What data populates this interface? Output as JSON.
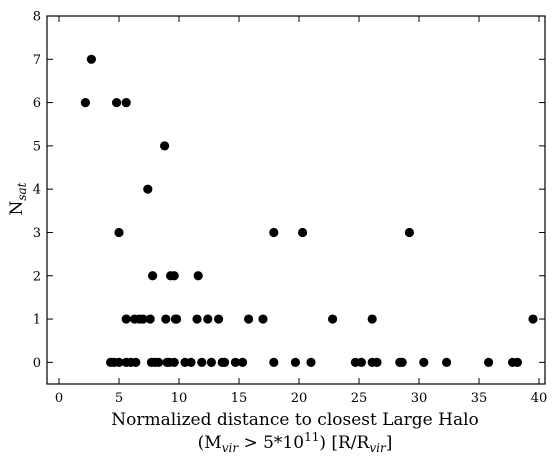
{
  "chart_data": {
    "type": "scatter",
    "xlabel_line1": "Normalized distance to closest Large Halo",
    "xlabel_line2": {
      "pre": "(M",
      "sub1": "vir",
      "mid": " > 5*10",
      "sup": "11",
      "post": ") [R/R",
      "sub2": "vir",
      "end": "]"
    },
    "ylabel": {
      "base": "N",
      "sub": "sat"
    },
    "xlim": [
      -1,
      40.5
    ],
    "ylim": [
      -0.5,
      8
    ],
    "xticks": [
      0,
      5,
      10,
      15,
      20,
      25,
      30,
      35,
      40
    ],
    "yticks": [
      0,
      1,
      2,
      3,
      4,
      5,
      6,
      7,
      8
    ],
    "grid": false,
    "marker_color": "#000000",
    "points": [
      [
        2.2,
        6
      ],
      [
        2.7,
        7
      ],
      [
        4.8,
        6
      ],
      [
        5.6,
        6
      ],
      [
        8.8,
        5
      ],
      [
        7.4,
        4
      ],
      [
        5.0,
        3
      ],
      [
        17.9,
        3
      ],
      [
        20.3,
        3
      ],
      [
        29.2,
        3
      ],
      [
        7.8,
        2
      ],
      [
        9.3,
        2
      ],
      [
        9.6,
        2
      ],
      [
        11.6,
        2
      ],
      [
        5.6,
        1
      ],
      [
        6.3,
        1
      ],
      [
        6.7,
        1
      ],
      [
        7.0,
        1
      ],
      [
        7.6,
        1
      ],
      [
        8.9,
        1
      ],
      [
        9.7,
        1
      ],
      [
        9.8,
        1
      ],
      [
        11.5,
        1
      ],
      [
        12.4,
        1
      ],
      [
        13.3,
        1
      ],
      [
        15.8,
        1
      ],
      [
        17.0,
        1
      ],
      [
        22.8,
        1
      ],
      [
        26.1,
        1
      ],
      [
        39.5,
        1
      ],
      [
        4.3,
        0
      ],
      [
        4.6,
        0
      ],
      [
        5.0,
        0
      ],
      [
        5.6,
        0
      ],
      [
        6.0,
        0
      ],
      [
        6.4,
        0
      ],
      [
        7.7,
        0
      ],
      [
        8.0,
        0
      ],
      [
        8.3,
        0
      ],
      [
        9.0,
        0
      ],
      [
        9.2,
        0
      ],
      [
        9.6,
        0
      ],
      [
        10.5,
        0
      ],
      [
        11.0,
        0
      ],
      [
        11.9,
        0
      ],
      [
        12.7,
        0
      ],
      [
        13.6,
        0
      ],
      [
        13.8,
        0
      ],
      [
        14.7,
        0
      ],
      [
        15.3,
        0
      ],
      [
        17.9,
        0
      ],
      [
        19.7,
        0
      ],
      [
        21.0,
        0
      ],
      [
        24.7,
        0
      ],
      [
        25.2,
        0
      ],
      [
        26.1,
        0
      ],
      [
        26.5,
        0
      ],
      [
        28.4,
        0
      ],
      [
        28.6,
        0
      ],
      [
        30.4,
        0
      ],
      [
        32.3,
        0
      ],
      [
        35.8,
        0
      ],
      [
        37.8,
        0
      ],
      [
        38.2,
        0
      ]
    ]
  }
}
